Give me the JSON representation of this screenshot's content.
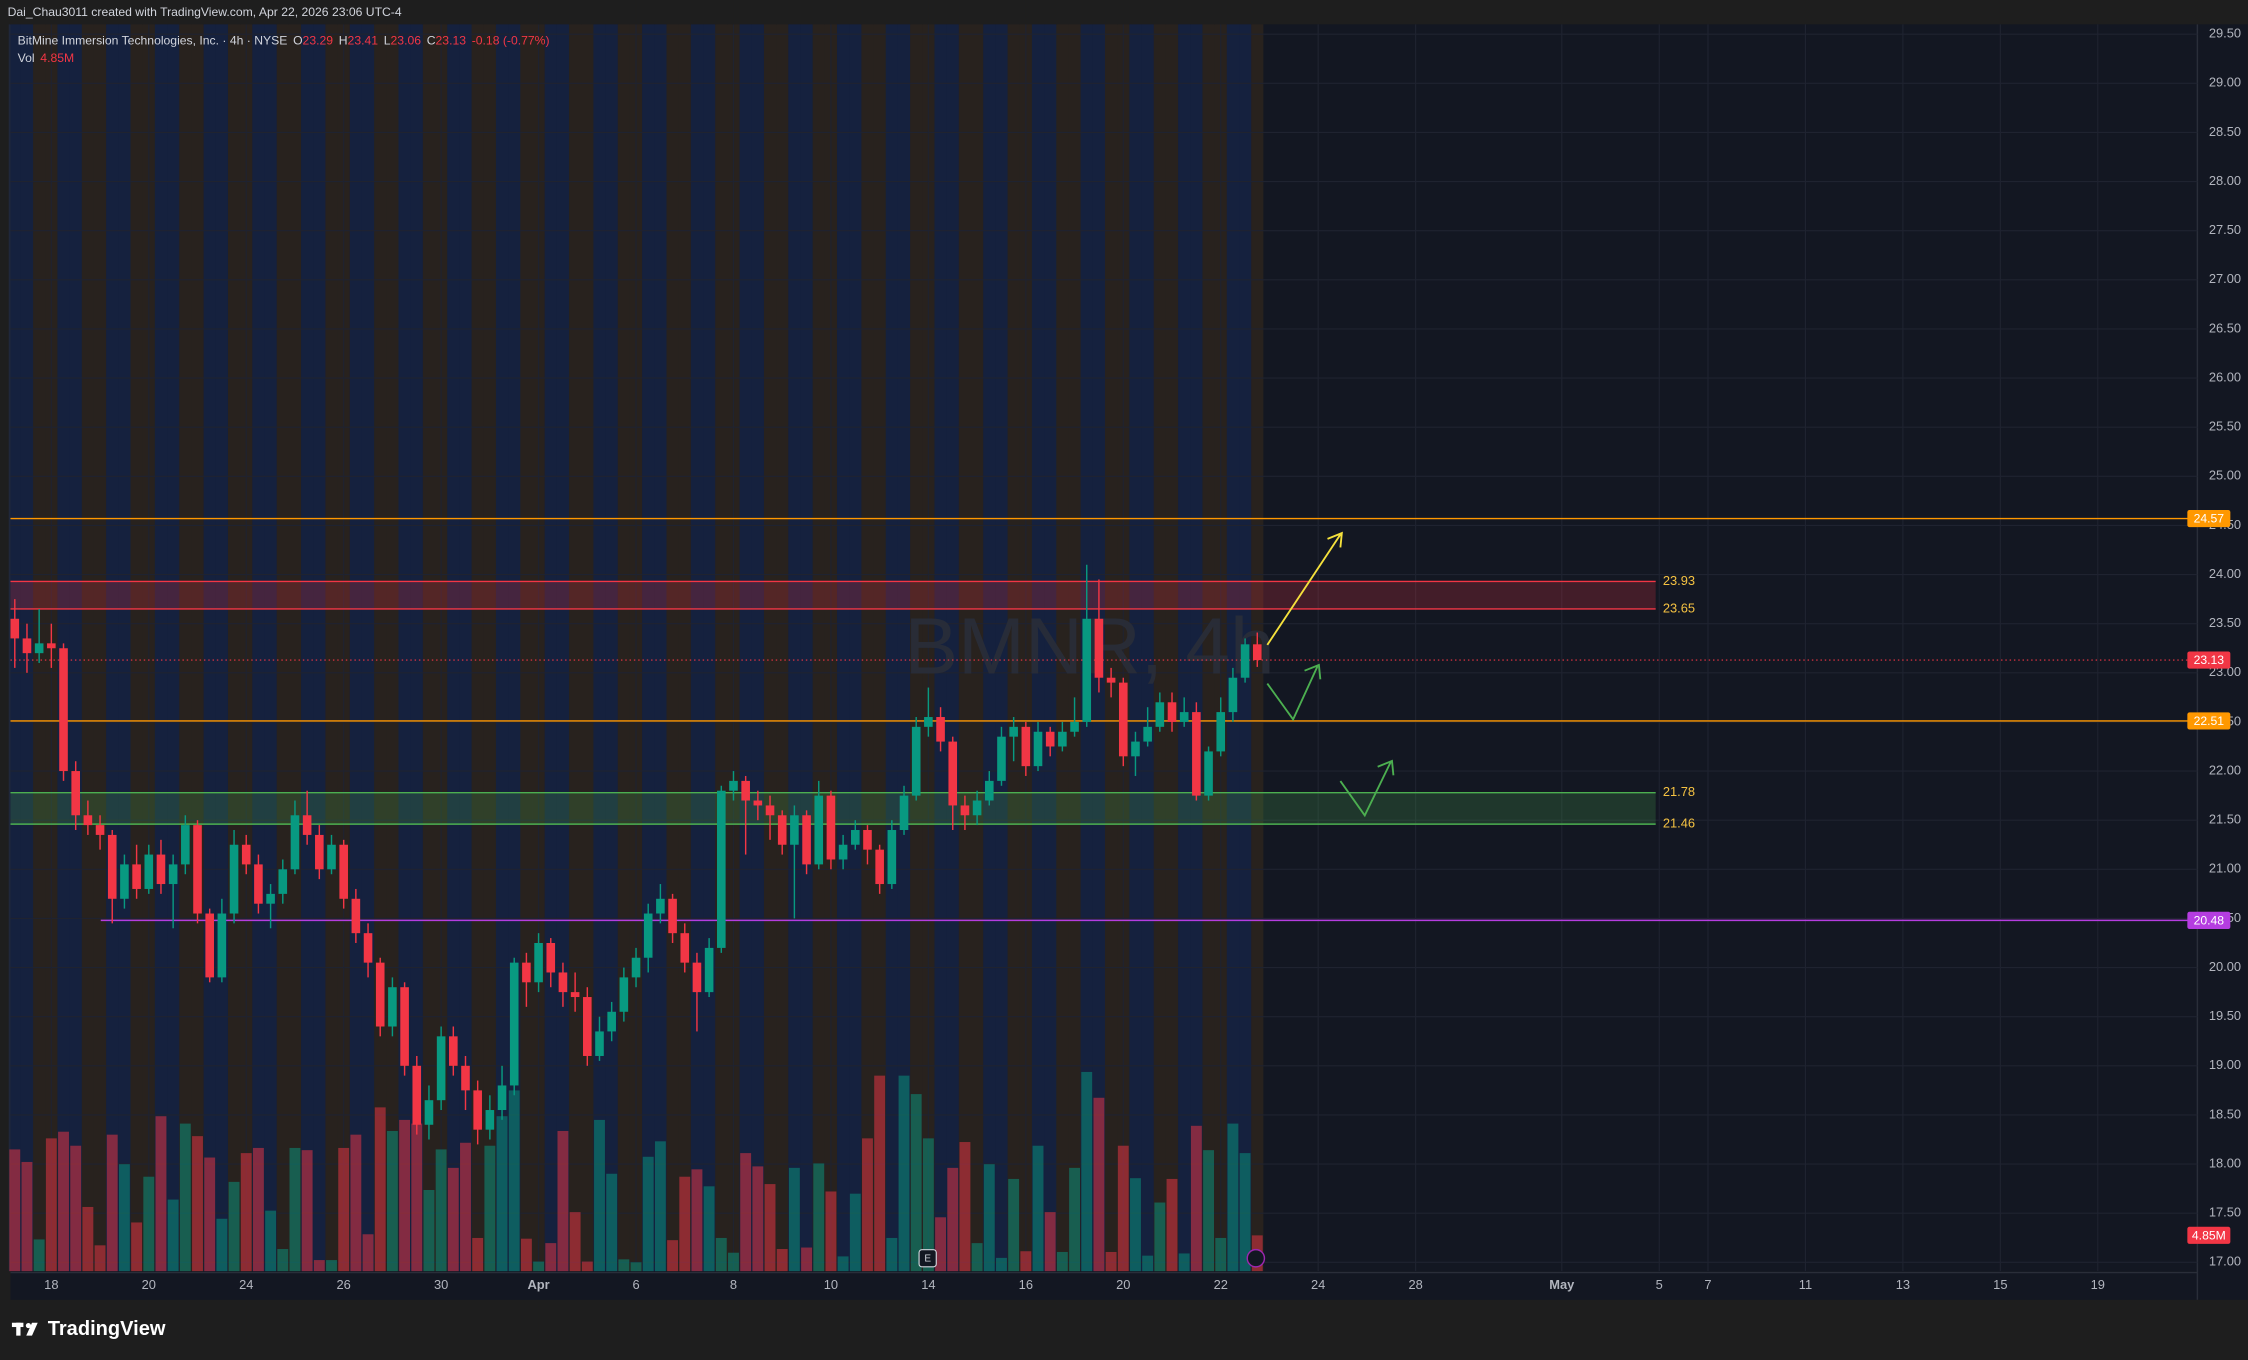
{
  "chart_data": {
    "type": "candlestick",
    "credit": "Dai_Chau3011 created with TradingView.com, Apr 22, 2026 23:06 UTC-4",
    "instrument": "BitMine Immersion Technologies, Inc. · 4h · NYSE",
    "ohlc_labels": [
      "O",
      "H",
      "L",
      "C"
    ],
    "change_text": "-0.18 (-0.77%)",
    "volume_name": "Vol",
    "volume_last_label": "4.85M",
    "watermark": "BMNR, 4h",
    "brand": "TradingView",
    "up_color": "#089981",
    "down_color": "#f23645",
    "ylim": [
      16.91,
      29.6
    ],
    "yticks": [
      {
        "value": 17,
        "label": "17.00"
      },
      {
        "value": 17.5,
        "label": "17.50"
      },
      {
        "value": 18,
        "label": "18.00"
      },
      {
        "value": 18.5,
        "label": "18.50"
      },
      {
        "value": 19,
        "label": "19.00"
      },
      {
        "value": 19.5,
        "label": "19.50"
      },
      {
        "value": 20,
        "label": "20.00"
      },
      {
        "value": 20.5,
        "label": "20.50"
      },
      {
        "value": 21,
        "label": "21.00"
      },
      {
        "value": 21.5,
        "label": "21.50"
      },
      {
        "value": 22,
        "label": "22.00"
      },
      {
        "value": 22.5,
        "label": "22.50"
      },
      {
        "value": 23,
        "label": "23.00"
      },
      {
        "value": 23.5,
        "label": "23.50"
      },
      {
        "value": 24,
        "label": "24.00"
      },
      {
        "value": 24.5,
        "label": "24.50"
      },
      {
        "value": 25,
        "label": "25.00"
      },
      {
        "value": 25.5,
        "label": "25.50"
      },
      {
        "value": 26,
        "label": "26.00"
      },
      {
        "value": 26.5,
        "label": "26.50"
      },
      {
        "value": 27,
        "label": "27.00"
      },
      {
        "value": 27.5,
        "label": "27.50"
      },
      {
        "value": 28,
        "label": "28.00"
      },
      {
        "value": 28.5,
        "label": "28.50"
      },
      {
        "value": 29,
        "label": "29.00"
      },
      {
        "value": 29.5,
        "label": "29.50"
      }
    ],
    "grid": true,
    "lines": [
      {
        "value": 24.57,
        "color": "#ff9800"
      },
      {
        "value": 22.51,
        "color": "#ff9800"
      },
      {
        "value": 20.48,
        "color": "#b53de0"
      }
    ],
    "zones": [
      {
        "top": 23.93,
        "bottom": 23.65,
        "color": "#f23645"
      },
      {
        "top": 21.78,
        "bottom": 21.46,
        "color": "#4caf50"
      }
    ],
    "categories": [
      null,
      null,
      null,
      "18",
      null,
      null,
      null,
      null,
      null,
      null,
      null,
      "20",
      null,
      null,
      null,
      null,
      null,
      null,
      null,
      "24",
      null,
      null,
      null,
      null,
      null,
      null,
      null,
      "26",
      null,
      null,
      null,
      null,
      null,
      null,
      null,
      "30",
      null,
      null,
      null,
      null,
      null,
      null,
      null,
      "Apr",
      null,
      null,
      null,
      null,
      null,
      null,
      null,
      "6",
      null,
      null,
      null,
      null,
      null,
      null,
      null,
      "8",
      null,
      null,
      null,
      null,
      null,
      null,
      null,
      "10",
      null,
      null,
      null,
      null,
      null,
      null,
      null,
      "14",
      null,
      null,
      null,
      null,
      null,
      null,
      null,
      "16",
      null,
      null,
      null,
      null,
      null,
      null,
      null,
      "20",
      null,
      null,
      null,
      null,
      null,
      null,
      null,
      "22",
      null,
      null,
      null,
      null,
      null,
      null,
      null,
      "24",
      null,
      null,
      null,
      null,
      null,
      null,
      null,
      "28",
      null,
      null,
      null,
      null,
      null,
      null,
      null,
      null,
      null,
      null,
      null,
      "May",
      null,
      null,
      null,
      null,
      null,
      null,
      null,
      "5",
      null,
      null,
      null,
      "7",
      null,
      null,
      null,
      null,
      null,
      null,
      null,
      "11",
      null,
      null,
      null,
      null,
      null,
      null,
      null,
      "13",
      null,
      null,
      null,
      null,
      null,
      null,
      null,
      "15",
      null,
      null,
      null,
      null,
      null,
      null,
      null,
      "19",
      null,
      null,
      null,
      null,
      null,
      null,
      null
    ],
    "open": [
      23.55,
      23.35,
      23.2,
      23.3,
      23.25,
      22.0,
      21.55,
      21.45,
      21.35,
      20.7,
      21.05,
      20.8,
      21.15,
      20.85,
      21.05,
      21.45,
      20.55,
      19.9,
      20.55,
      21.25,
      21.05,
      20.65,
      20.75,
      21.0,
      21.55,
      21.35,
      21.0,
      21.25,
      20.7,
      20.35,
      20.05,
      19.4,
      19.8,
      19.0,
      18.4,
      18.65,
      19.3,
      19.0,
      18.75,
      18.35,
      18.55,
      18.8,
      20.05,
      19.85,
      20.25,
      19.95,
      19.75,
      19.7,
      19.1,
      19.35,
      19.55,
      19.9,
      20.1,
      20.55,
      20.7,
      20.35,
      20.05,
      19.75,
      20.2,
      21.8,
      21.9,
      21.7,
      21.65,
      21.55,
      21.25,
      21.55,
      21.05,
      21.75,
      21.1,
      21.25,
      21.4,
      21.2,
      20.85,
      21.4,
      21.75,
      22.45,
      22.55,
      22.3,
      21.65,
      21.55,
      21.7,
      21.9,
      22.35,
      22.45,
      22.05,
      22.4,
      22.25,
      22.4,
      22.5,
      23.55,
      22.95,
      22.9,
      22.15,
      22.3,
      22.45,
      22.7,
      22.5,
      22.6,
      21.75,
      22.2,
      22.6,
      22.95,
      23.29,
      null,
      null,
      null,
      null,
      null,
      null,
      null,
      null,
      null,
      null,
      null,
      null,
      null,
      null,
      null,
      null,
      null,
      null,
      null,
      null,
      null,
      null,
      null,
      null,
      null,
      null,
      null,
      null,
      null,
      null,
      null,
      null,
      null,
      null,
      null,
      null,
      null,
      null,
      null,
      null,
      null,
      null,
      null,
      null,
      null,
      null,
      null,
      null,
      null,
      null,
      null,
      null,
      null,
      null,
      null,
      null,
      null,
      null,
      null,
      null,
      null,
      null,
      null,
      null,
      null,
      null,
      null,
      null,
      null,
      null,
      null,
      null,
      null,
      null,
      null,
      null
    ],
    "high": [
      23.75,
      23.5,
      23.65,
      23.5,
      23.3,
      22.1,
      21.7,
      21.55,
      21.4,
      21.15,
      21.25,
      21.25,
      21.3,
      21.15,
      21.55,
      21.5,
      20.6,
      20.7,
      21.4,
      21.35,
      21.15,
      20.85,
      21.1,
      21.7,
      21.8,
      21.45,
      21.35,
      21.3,
      20.8,
      20.45,
      20.1,
      19.9,
      19.85,
      19.1,
      18.8,
      19.4,
      19.4,
      19.1,
      18.85,
      18.7,
      19.0,
      20.1,
      20.15,
      20.35,
      20.3,
      20.05,
      19.95,
      19.8,
      19.5,
      19.65,
      20.0,
      20.2,
      20.65,
      20.85,
      20.75,
      20.45,
      20.15,
      20.3,
      21.85,
      22.0,
      21.95,
      21.8,
      21.75,
      21.6,
      21.65,
      21.6,
      21.9,
      21.8,
      21.35,
      21.5,
      21.45,
      21.25,
      21.5,
      21.85,
      22.55,
      22.85,
      22.65,
      22.35,
      21.75,
      21.8,
      22.0,
      22.45,
      22.55,
      22.5,
      22.5,
      22.45,
      22.5,
      22.75,
      24.1,
      23.95,
      23.05,
      22.95,
      22.4,
      22.65,
      22.8,
      22.8,
      22.75,
      22.7,
      22.25,
      22.75,
      23.05,
      23.35,
      23.41,
      null,
      null,
      null,
      null,
      null,
      null,
      null,
      null,
      null,
      null,
      null,
      null,
      null,
      null,
      null,
      null,
      null,
      null,
      null,
      null,
      null,
      null,
      null,
      null,
      null,
      null,
      null,
      null,
      null,
      null,
      null,
      null,
      null,
      null,
      null,
      null,
      null,
      null,
      null,
      null,
      null,
      null,
      null,
      null,
      null,
      null,
      null,
      null,
      null,
      null,
      null,
      null,
      null,
      null,
      null,
      null,
      null,
      null,
      null,
      null,
      null,
      null,
      null,
      null,
      null,
      null,
      null,
      null,
      null,
      null,
      null,
      null,
      null,
      null,
      null,
      null
    ],
    "low": [
      23.05,
      23.0,
      23.1,
      23.05,
      21.9,
      21.4,
      21.35,
      21.2,
      20.45,
      20.6,
      20.7,
      20.75,
      20.75,
      20.4,
      20.95,
      20.45,
      19.85,
      19.85,
      20.45,
      20.95,
      20.55,
      20.4,
      20.65,
      20.95,
      21.25,
      20.9,
      20.95,
      20.6,
      20.25,
      19.9,
      19.3,
      19.3,
      18.9,
      18.3,
      18.25,
      18.55,
      18.9,
      18.55,
      18.2,
      18.25,
      18.45,
      18.7,
      19.6,
      19.75,
      19.8,
      19.6,
      19.55,
      19.0,
      19.05,
      19.25,
      19.45,
      19.8,
      19.95,
      20.45,
      20.25,
      19.95,
      19.35,
      19.7,
      20.15,
      21.7,
      21.15,
      21.5,
      21.3,
      21.15,
      20.5,
      20.95,
      21.0,
      21.0,
      21.0,
      21.2,
      21.05,
      20.75,
      20.8,
      21.35,
      21.7,
      22.35,
      22.2,
      21.4,
      21.4,
      21.45,
      21.65,
      21.85,
      22.1,
      21.95,
      22.0,
      22.15,
      22.2,
      22.35,
      22.45,
      22.8,
      22.75,
      22.05,
      21.95,
      22.25,
      22.4,
      22.4,
      22.45,
      21.7,
      21.7,
      22.15,
      22.5,
      22.9,
      23.06,
      null,
      null,
      null,
      null,
      null,
      null,
      null,
      null,
      null,
      null,
      null,
      null,
      null,
      null,
      null,
      null,
      null,
      null,
      null,
      null,
      null,
      null,
      null,
      null,
      null,
      null,
      null,
      null,
      null,
      null,
      null,
      null,
      null,
      null,
      null,
      null,
      null,
      null,
      null,
      null,
      null,
      null,
      null,
      null,
      null,
      null,
      null,
      null,
      null,
      null,
      null,
      null,
      null,
      null,
      null,
      null,
      null,
      null,
      null,
      null,
      null,
      null,
      null,
      null,
      null,
      null,
      null,
      null,
      null,
      null,
      null,
      null,
      null,
      null,
      null,
      null
    ],
    "close": [
      23.35,
      23.2,
      23.3,
      23.25,
      22.0,
      21.55,
      21.45,
      21.35,
      20.7,
      21.05,
      20.8,
      21.15,
      20.85,
      21.05,
      21.45,
      20.55,
      19.9,
      20.55,
      21.25,
      21.05,
      20.65,
      20.75,
      21.0,
      21.55,
      21.35,
      21.0,
      21.25,
      20.7,
      20.35,
      20.05,
      19.4,
      19.8,
      19.0,
      18.4,
      18.65,
      19.3,
      19.0,
      18.75,
      18.35,
      18.55,
      18.8,
      20.05,
      19.85,
      20.25,
      19.95,
      19.75,
      19.7,
      19.1,
      19.35,
      19.55,
      19.9,
      20.1,
      20.55,
      20.7,
      20.35,
      20.05,
      19.75,
      20.2,
      21.8,
      21.9,
      21.7,
      21.65,
      21.55,
      21.25,
      21.55,
      21.05,
      21.75,
      21.1,
      21.25,
      21.4,
      21.2,
      20.85,
      21.4,
      21.75,
      22.45,
      22.55,
      22.3,
      21.65,
      21.55,
      21.7,
      21.9,
      22.35,
      22.45,
      22.05,
      22.4,
      22.25,
      22.4,
      22.5,
      23.55,
      22.95,
      22.9,
      22.15,
      22.3,
      22.45,
      22.7,
      22.5,
      22.6,
      21.75,
      22.2,
      22.6,
      22.95,
      23.29,
      23.13,
      null,
      null,
      null,
      null,
      null,
      null,
      null,
      null,
      null,
      null,
      null,
      null,
      null,
      null,
      null,
      null,
      null,
      null,
      null,
      null,
      null,
      null,
      null,
      null,
      null,
      null,
      null,
      null,
      null,
      null,
      null,
      null,
      null,
      null,
      null,
      null,
      null,
      null,
      null,
      null,
      null,
      null,
      null,
      null,
      null,
      null,
      null,
      null,
      null,
      null,
      null,
      null,
      null,
      null,
      null,
      null,
      null,
      null,
      null,
      null,
      null,
      null,
      null,
      null,
      null,
      null,
      null,
      null,
      null,
      null,
      null,
      null,
      null,
      null,
      null,
      null
    ],
    "volume": [
      16.5,
      14.8,
      4.3,
      18.0,
      18.9,
      17.0,
      8.7,
      3.5,
      18.5,
      14.5,
      6.6,
      12.8,
      21.0,
      9.7,
      20.0,
      18.3,
      15.4,
      7.1,
      12.1,
      16.0,
      16.7,
      8.2,
      3.0,
      16.7,
      16.4,
      1.5,
      1.5,
      16.7,
      18.5,
      5.0,
      22.2,
      19.0,
      20.5,
      20.0,
      11.0,
      16.5,
      14.0,
      17.4,
      4.5,
      17.0,
      21.0,
      24.5,
      4.4,
      1.3,
      3.8,
      19.0,
      8.0,
      1.3,
      20.5,
      13.2,
      1.6,
      1.2,
      15.5,
      17.6,
      4.2,
      12.8,
      13.8,
      11.5,
      4.5,
      2.5,
      16.0,
      14.2,
      11.8,
      3.0,
      14.0,
      3.2,
      14.6,
      10.8,
      2.0,
      10.5,
      18.0,
      26.5,
      4.5,
      26.5,
      24.0,
      18.0,
      7.3,
      14.0,
      17.5,
      3.8,
      14.5,
      1.8,
      12.5,
      2.7,
      17.0,
      8.0,
      2.6,
      14.0,
      27.0,
      23.5,
      2.6,
      17.0,
      12.6,
      2.1,
      9.3,
      12.5,
      2.4,
      19.7,
      16.4,
      4.5,
      20.0,
      16.0,
      4.85,
      null,
      null,
      null,
      null,
      null,
      null,
      null,
      null,
      null,
      null,
      null,
      null,
      null,
      null,
      null,
      null,
      null,
      null,
      null,
      null,
      null,
      null,
      null,
      null,
      null,
      null,
      null,
      null,
      null,
      null,
      null,
      null,
      null,
      null,
      null,
      null,
      null,
      null,
      null,
      null,
      null,
      null,
      null,
      null,
      null,
      null,
      null,
      null,
      null,
      null,
      null,
      null,
      null,
      null,
      null,
      null,
      null,
      null,
      null,
      null,
      null,
      null,
      null,
      null,
      null,
      null,
      null,
      null,
      null,
      null,
      null,
      null,
      null,
      null,
      null,
      null
    ]
  }
}
